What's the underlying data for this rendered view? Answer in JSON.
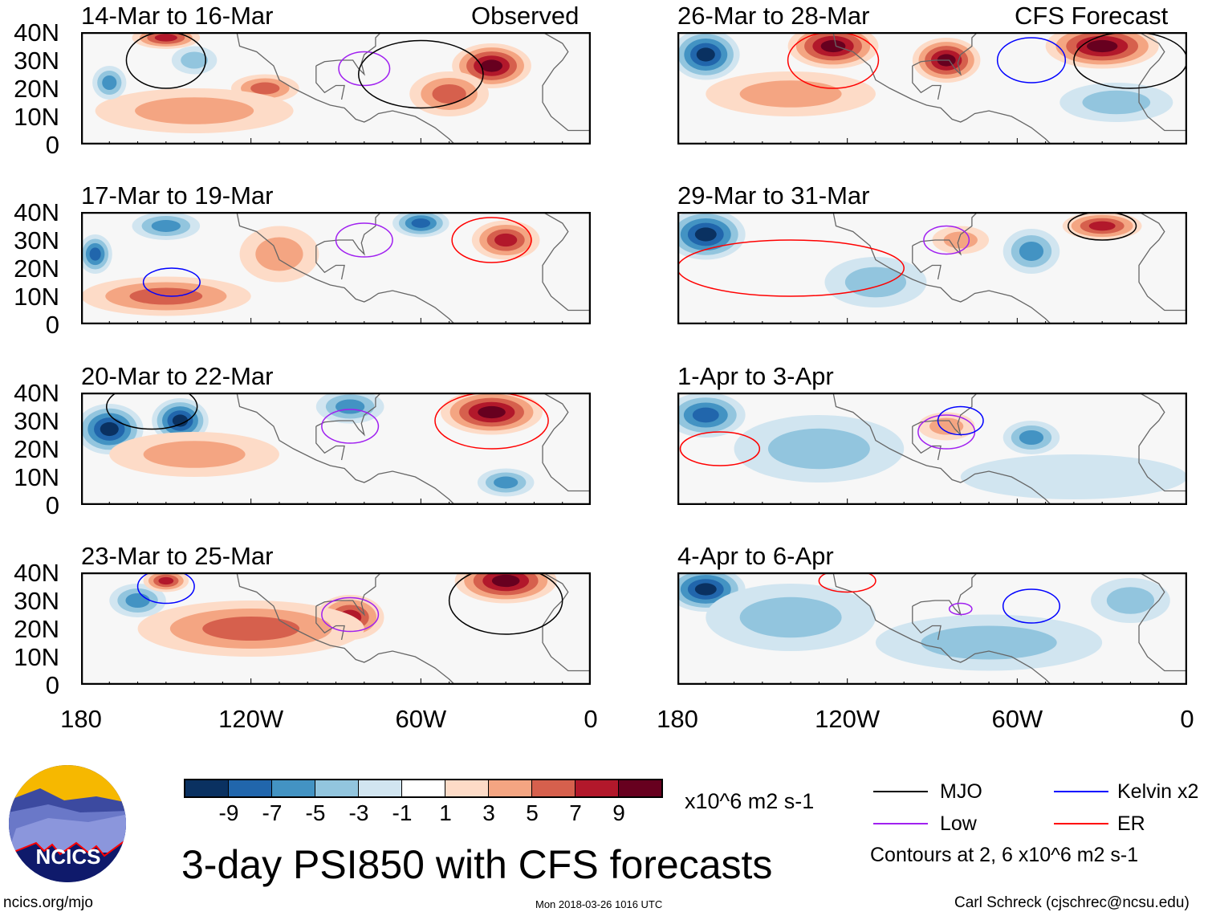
{
  "header": {
    "observed_label": "Observed",
    "forecast_label": "CFS Forecast"
  },
  "lat_labels": [
    "40N",
    "30N",
    "20N",
    "10N",
    "0"
  ],
  "lon_labels": [
    "180",
    "120W",
    "60W",
    "0"
  ],
  "panels": [
    {
      "title": "14-Mar to 16-Mar",
      "col": "observed",
      "anomalies": [
        [
          -35,
          28,
          14,
          8,
          8
        ],
        [
          -50,
          18,
          14,
          8,
          4
        ],
        [
          -115,
          20,
          12,
          5,
          5
        ],
        [
          -140,
          12,
          35,
          8,
          2
        ],
        [
          -170,
          22,
          6,
          6,
          -4
        ],
        [
          -140,
          30,
          8,
          5,
          -3
        ],
        [
          -150,
          38,
          12,
          4,
          6
        ]
      ],
      "contours": [
        [
          -80,
          27,
          9,
          6,
          "low"
        ],
        [
          -60,
          25,
          22,
          12,
          "mjo"
        ],
        [
          -150,
          30,
          14,
          10,
          "mjo"
        ]
      ]
    },
    {
      "title": "17-Mar to 19-Mar",
      "col": "observed",
      "anomalies": [
        [
          -30,
          30,
          12,
          7,
          7
        ],
        [
          -150,
          10,
          30,
          7,
          5
        ],
        [
          -150,
          35,
          12,
          5,
          -5
        ],
        [
          -175,
          25,
          6,
          7,
          -6
        ],
        [
          -60,
          36,
          10,
          5,
          -6
        ],
        [
          -110,
          25,
          14,
          10,
          3
        ]
      ],
      "contours": [
        [
          -148,
          15,
          10,
          5,
          "kelvin"
        ],
        [
          -80,
          30,
          10,
          6,
          "low"
        ],
        [
          -35,
          30,
          14,
          8,
          "er"
        ]
      ]
    },
    {
      "title": "20-Mar to 22-Mar",
      "col": "observed",
      "anomalies": [
        [
          -35,
          33,
          18,
          8,
          9
        ],
        [
          -170,
          27,
          12,
          9,
          -9
        ],
        [
          -145,
          30,
          10,
          8,
          -8
        ],
        [
          -85,
          35,
          12,
          6,
          -5
        ],
        [
          -30,
          8,
          10,
          5,
          -4
        ],
        [
          -140,
          18,
          30,
          8,
          2
        ]
      ],
      "contours": [
        [
          -35,
          30,
          20,
          10,
          "er"
        ],
        [
          -155,
          35,
          16,
          8,
          "mjo"
        ],
        [
          -85,
          28,
          10,
          6,
          "low"
        ]
      ]
    },
    {
      "title": "23-Mar to 25-Mar",
      "col": "observed",
      "anomalies": [
        [
          -30,
          37,
          18,
          8,
          10
        ],
        [
          -85,
          24,
          12,
          8,
          7
        ],
        [
          -120,
          20,
          40,
          10,
          4
        ],
        [
          -160,
          30,
          10,
          6,
          -4
        ],
        [
          -150,
          37,
          8,
          4,
          6
        ]
      ],
      "contours": [
        [
          -30,
          30,
          20,
          12,
          "mjo"
        ],
        [
          -150,
          35,
          10,
          6,
          "kelvin"
        ],
        [
          -85,
          25,
          10,
          6,
          "low"
        ]
      ]
    },
    {
      "title": "26-Mar to 28-Mar",
      "col": "forecast",
      "anomalies": [
        [
          -170,
          32,
          12,
          9,
          -8
        ],
        [
          -125,
          35,
          16,
          8,
          8
        ],
        [
          -85,
          30,
          12,
          8,
          8
        ],
        [
          -30,
          35,
          20,
          8,
          9
        ],
        [
          -140,
          18,
          30,
          8,
          3
        ],
        [
          -25,
          15,
          20,
          7,
          -2
        ]
      ],
      "contours": [
        [
          -125,
          30,
          16,
          10,
          "er"
        ],
        [
          -20,
          30,
          20,
          10,
          "mjo"
        ],
        [
          -55,
          30,
          12,
          8,
          "kelvin"
        ]
      ]
    },
    {
      "title": "29-Mar to 31-Mar",
      "col": "forecast",
      "anomalies": [
        [
          -170,
          32,
          14,
          9,
          -8
        ],
        [
          -55,
          26,
          10,
          8,
          -5
        ],
        [
          -110,
          15,
          18,
          9,
          -3
        ],
        [
          -30,
          35,
          14,
          5,
          7
        ],
        [
          -80,
          30,
          10,
          5,
          3
        ]
      ],
      "contours": [
        [
          -140,
          20,
          40,
          10,
          "er"
        ],
        [
          -85,
          30,
          8,
          5,
          "low"
        ],
        [
          -30,
          35,
          12,
          5,
          "mjo"
        ]
      ]
    },
    {
      "title": "1-Apr to 3-Apr",
      "col": "forecast",
      "anomalies": [
        [
          -170,
          32,
          14,
          8,
          -7
        ],
        [
          -130,
          20,
          30,
          12,
          -2
        ],
        [
          -85,
          28,
          10,
          5,
          3
        ],
        [
          -55,
          24,
          10,
          6,
          -4
        ],
        [
          -40,
          10,
          40,
          8,
          -1
        ]
      ],
      "contours": [
        [
          -165,
          20,
          14,
          6,
          "er"
        ],
        [
          -85,
          26,
          10,
          6,
          "low"
        ],
        [
          -80,
          30,
          8,
          5,
          "kelvin"
        ]
      ]
    },
    {
      "title": "4-Apr to 6-Apr",
      "col": "forecast",
      "anomalies": [
        [
          -170,
          34,
          14,
          8,
          -8
        ],
        [
          -140,
          24,
          30,
          12,
          -3
        ],
        [
          -70,
          15,
          40,
          10,
          -2
        ],
        [
          -20,
          30,
          14,
          8,
          -2
        ]
      ],
      "contours": [
        [
          -55,
          28,
          10,
          6,
          "kelvin"
        ],
        [
          -80,
          27,
          4,
          2,
          "low"
        ],
        [
          -120,
          37,
          10,
          4,
          "er"
        ]
      ]
    }
  ],
  "colorbar": {
    "levels": [
      "-9",
      "-7",
      "-5",
      "-3",
      "-1",
      "1",
      "3",
      "5",
      "7",
      "9"
    ],
    "colors": [
      "#0a3161",
      "#2166ac",
      "#4393c3",
      "#92c5de",
      "#d1e5f0",
      "#ffffff",
      "#fddbc7",
      "#f4a582",
      "#d6604d",
      "#b2182b",
      "#67001f"
    ],
    "units": "x10^6 m2 s-1"
  },
  "legend": {
    "mjo": "MJO",
    "kelvin": "Kelvin x2",
    "low": "Low",
    "er": "ER",
    "note": "Contours at 2, 6 x10^6 m2 s-1",
    "colors": {
      "mjo": "#000000",
      "kelvin": "#0000ff",
      "low": "#a020f0",
      "er": "#ff0000"
    }
  },
  "title": "3-day PSI850 with CFS forecasts",
  "logo_text": "NCICS",
  "footer": {
    "url": "ncics.org/mjo",
    "timestamp": "Mon 2018-03-26 1016 UTC",
    "credit": "Carl Schreck (cjschrec@ncsu.edu)"
  }
}
